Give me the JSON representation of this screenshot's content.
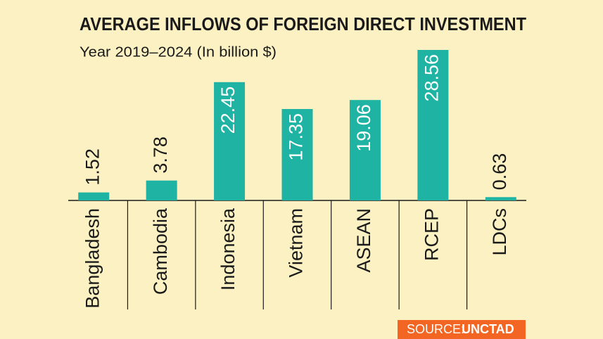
{
  "chart_data": {
    "type": "bar",
    "title": "AVERAGE INFLOWS OF FOREIGN DIRECT INVESTMENT",
    "subtitle": "Year 2019–2024 (In billion $)",
    "categories": [
      "Bangladesh",
      "Cambodia",
      "Indonesia",
      "Vietnam",
      "ASEAN",
      "RCEP",
      "LDCs"
    ],
    "values": [
      1.52,
      3.78,
      22.45,
      17.35,
      19.06,
      28.56,
      0.63
    ],
    "color": "#1fb3a3",
    "source_label": "SOURCE:",
    "source": "UNCTAD"
  }
}
